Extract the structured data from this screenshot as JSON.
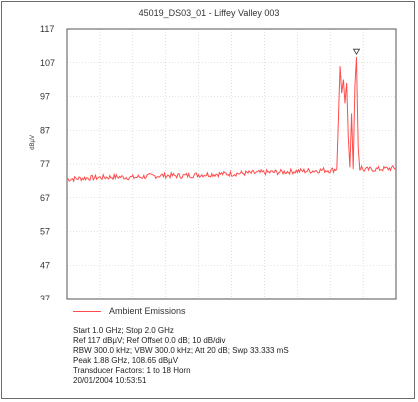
{
  "chart_data": {
    "type": "line",
    "title": "45019_DS03_01 - Liffey Valley 003",
    "xlabel": "",
    "ylabel": "dBµV",
    "ylim": [
      37,
      117
    ],
    "yticks": [
      "117",
      "107",
      "97",
      "87",
      "77",
      "67",
      "57",
      "47",
      "37"
    ],
    "grid": true,
    "legend_placement": "bottom-left",
    "series": [
      {
        "name": "Ambient Emissions",
        "color": "#ff4d4d",
        "x": [
          1.0,
          1.05,
          1.1,
          1.15,
          1.2,
          1.25,
          1.3,
          1.35,
          1.4,
          1.45,
          1.5,
          1.55,
          1.6,
          1.65,
          1.7,
          1.75,
          1.78,
          1.8,
          1.81,
          1.82,
          1.825,
          1.83,
          1.835,
          1.84,
          1.845,
          1.85,
          1.855,
          1.86,
          1.865,
          1.87,
          1.875,
          1.88,
          1.885,
          1.89,
          1.895,
          1.9,
          1.95,
          2.0
        ],
        "values": [
          72.5,
          72.8,
          73.0,
          73.2,
          73.0,
          73.4,
          73.6,
          73.5,
          73.8,
          74.0,
          74.1,
          74.3,
          74.5,
          74.6,
          74.9,
          75.0,
          75.2,
          75.1,
          75.3,
          75.5,
          90.0,
          106.0,
          98.0,
          102.0,
          95.0,
          101.0,
          85.0,
          76.0,
          92.0,
          75.5,
          100.0,
          108.65,
          82.0,
          75.5,
          76.0,
          75.3,
          75.5,
          75.8
        ]
      }
    ],
    "peak_marker": {
      "x": 1.88,
      "y": 108.65
    }
  },
  "info_lines": [
    "Start 1.0 GHz; Stop 2.0 GHz",
    "Ref 117 dBµV; Ref Offset 0.0 dB; 10 dB/div",
    "RBW 300.0 kHz; VBW 300.0 kHz; Att 20 dB; Swp 33.333 mS",
    "Peak 1.88 GHz, 108.65 dBµV",
    "Transducer Factors: 1 to 18 Horn",
    "20/01/2004 10:53:51"
  ]
}
